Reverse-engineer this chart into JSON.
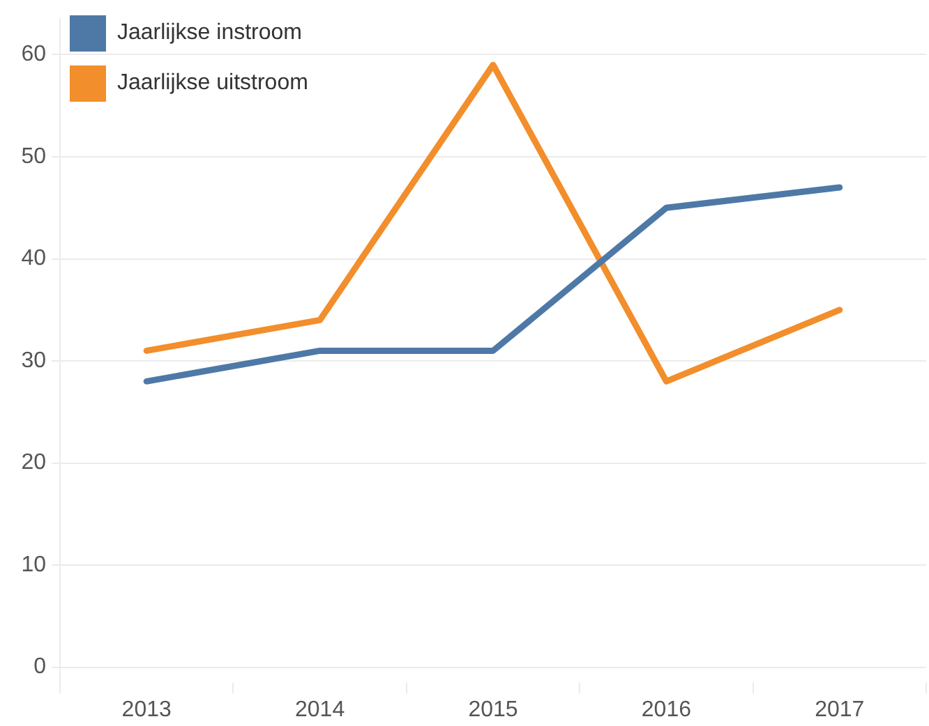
{
  "chart_data": {
    "type": "line",
    "categories": [
      "2013",
      "2014",
      "2015",
      "2016",
      "2017"
    ],
    "series": [
      {
        "name": "Jaarlijkse instroom",
        "color": "#4e79a7",
        "values": [
          28,
          31,
          31,
          45,
          47
        ]
      },
      {
        "name": "Jaarlijkse uitstroom",
        "color": "#f28e2b",
        "values": [
          31,
          34,
          59,
          28,
          35
        ]
      }
    ],
    "ylim": [
      -1.5,
      63.5
    ],
    "yticks": [
      0,
      10,
      20,
      30,
      40,
      50,
      60
    ],
    "grid": "y",
    "legend": "top left",
    "marker": "none",
    "line_style": "solid"
  }
}
